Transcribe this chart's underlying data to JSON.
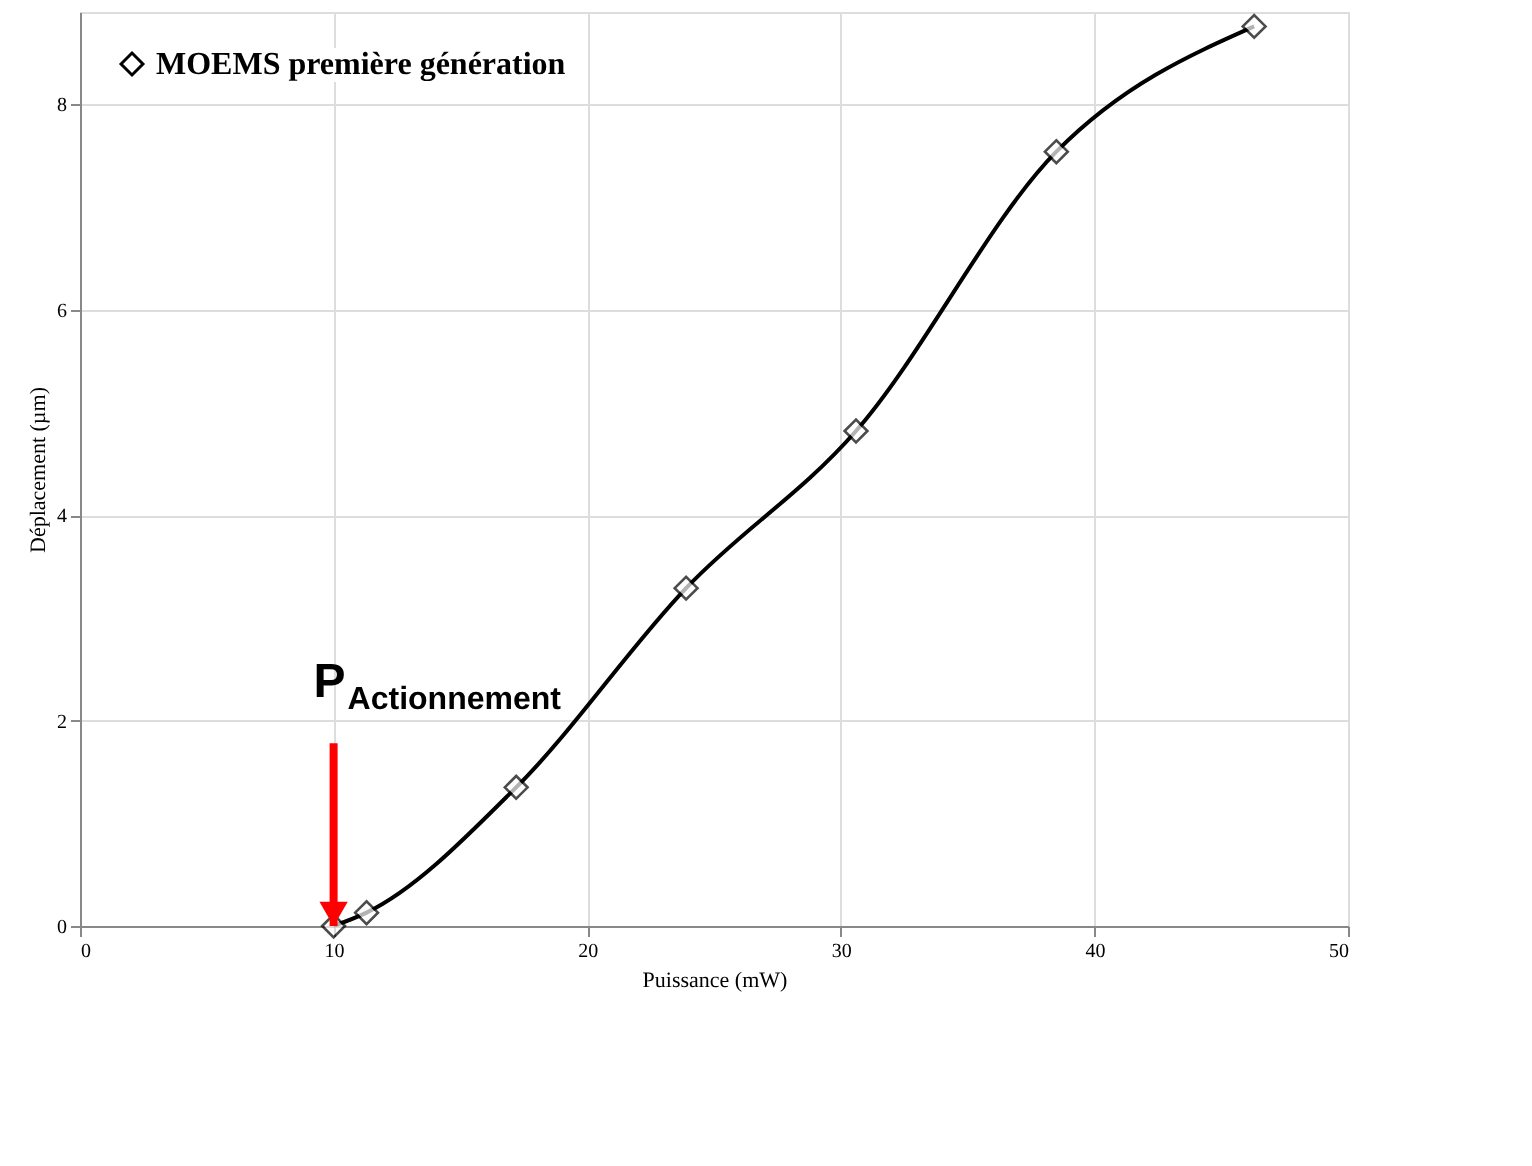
{
  "chart_data": {
    "type": "line",
    "xlabel": "Puissance (mW)",
    "ylabel": "Déplacement (µm)",
    "xlim": [
      0,
      50
    ],
    "xticks": [
      0,
      10,
      20,
      30,
      40,
      50
    ],
    "ylim": [
      0,
      8.9
    ],
    "yticks": [
      0,
      2,
      4,
      6,
      8
    ],
    "grid": true,
    "legend": "top left",
    "marker": "diamond",
    "line_style": "solid",
    "series": [
      {
        "name": "MOEMS première génération",
        "color": "#000000",
        "x": [
          10,
          11.3,
          17.2,
          23.9,
          30.6,
          38.5,
          46.3
        ],
        "values": [
          0,
          0.13,
          1.35,
          3.29,
          4.82,
          7.54,
          8.76
        ]
      }
    ],
    "annotations": [
      {
        "text": "P$_{Actionnement}$",
        "x": 10,
        "y": 0
      }
    ]
  }
}
